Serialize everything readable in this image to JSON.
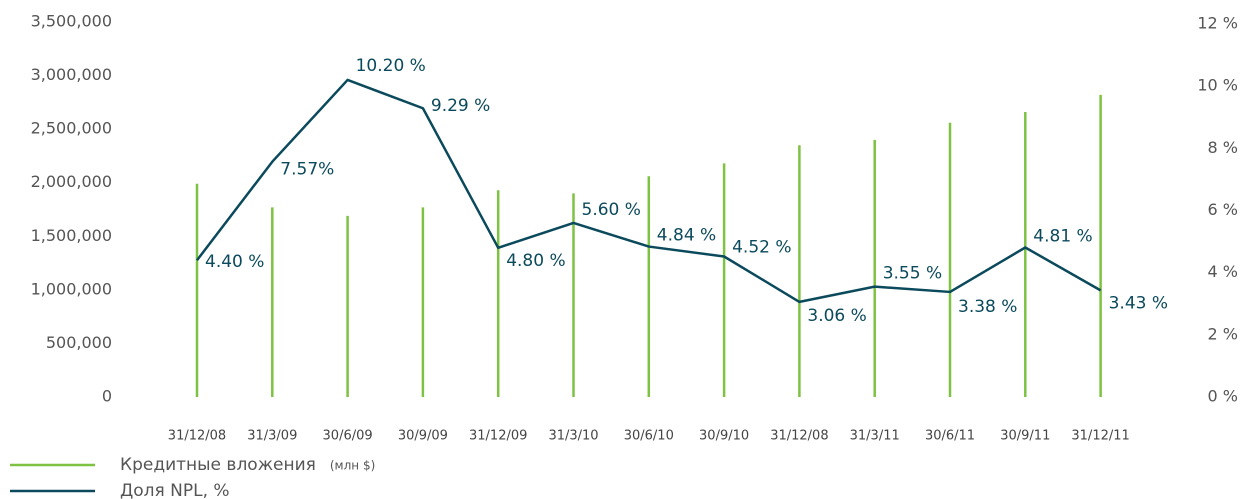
{
  "chart_data": {
    "type": "bar_line",
    "categories": [
      "31/12/08",
      "31/3/09",
      "30/6/09",
      "30/9/09",
      "31/12/09",
      "31/3/10",
      "30/6/10",
      "30/9/10",
      "31/12/08",
      "31/3/11",
      "30/6/11",
      "30/9/11",
      "31/12/11"
    ],
    "series": [
      {
        "name": "Кредитные вложения",
        "legend_note": "(млн $)",
        "color": "#7dc242",
        "type": "bar",
        "values": [
          1990000,
          1770000,
          1690000,
          1770000,
          1930000,
          1900000,
          2060000,
          2180000,
          2350000,
          2400000,
          2560000,
          2660000,
          2820000
        ]
      },
      {
        "name": "Доля NPL, %",
        "color": "#0b4a5c",
        "type": "line",
        "axis": "y2",
        "values": [
          4.4,
          7.57,
          10.2,
          9.29,
          4.8,
          5.6,
          4.84,
          4.52,
          3.06,
          3.55,
          3.38,
          4.81,
          3.43
        ],
        "value_labels": [
          "4.40 %",
          "7.57%",
          "10.20 %",
          "9.29 %",
          "4.80 %",
          "5.60 %",
          "4.84 %",
          "4.52 %",
          "3.06 %",
          "3.55 %",
          "3.38 %",
          "4.81 %",
          "3.43 %"
        ]
      }
    ],
    "ylim": [
      0,
      3500000
    ],
    "yticks": [
      0,
      {
        "value": 500000,
        "label": "500,000"
      },
      {
        "value": 1000000,
        "label": "1,000,000"
      },
      {
        "value": 1500000,
        "label": "1,500,000"
      },
      {
        "value": 2000000,
        "label": "2,000,000"
      },
      {
        "value": 2500000,
        "label": "2,500,000"
      },
      {
        "value": 3000000,
        "label": "3,000,000"
      },
      {
        "value": 3500000,
        "label": "3,500,000"
      }
    ],
    "y2lim": [
      0,
      12
    ],
    "y2ticks": [
      {
        "value": 0,
        "label": "0 %"
      },
      {
        "value": 2,
        "label": "2 %"
      },
      {
        "value": 4,
        "label": "4 %"
      },
      {
        "value": 6,
        "label": "6 %"
      },
      {
        "value": 8,
        "label": "8 %"
      },
      {
        "value": 10,
        "label": "10 %"
      },
      {
        "value": 12,
        "label": "12 %"
      }
    ]
  }
}
